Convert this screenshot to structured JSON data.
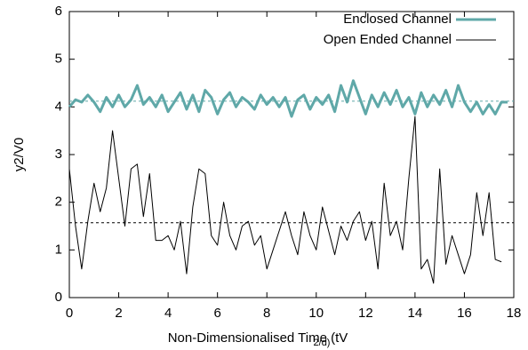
{
  "chart_data": {
    "type": "line",
    "xlabel": "Non-Dimensionalised Time (tV",
    "xlabel_subscript": "2/d)",
    "ylabel": "y2/V0",
    "xlim": [
      0,
      18
    ],
    "xticks": [
      0,
      2,
      4,
      6,
      8,
      10,
      12,
      14,
      16,
      18
    ],
    "ylim": [
      0,
      6
    ],
    "yticks": [
      0,
      1,
      2,
      3,
      4,
      5,
      6
    ],
    "legend": "top-right",
    "reference_lines": [
      {
        "value": 4.12,
        "color": "#5fa8a8"
      },
      {
        "value": 1.57,
        "color": "#000000"
      }
    ],
    "series": [
      {
        "name": "Enclosed Channel",
        "color": "#5fa8a8",
        "width": 3,
        "x": [
          0,
          0.25,
          0.5,
          0.75,
          1,
          1.25,
          1.5,
          1.75,
          2,
          2.25,
          2.5,
          2.75,
          3,
          3.25,
          3.5,
          3.75,
          4,
          4.25,
          4.5,
          4.75,
          5,
          5.25,
          5.5,
          5.75,
          6,
          6.25,
          6.5,
          6.75,
          7,
          7.25,
          7.5,
          7.75,
          8,
          8.25,
          8.5,
          8.75,
          9,
          9.25,
          9.5,
          9.75,
          10,
          10.25,
          10.5,
          10.75,
          11,
          11.25,
          11.5,
          11.75,
          12,
          12.25,
          12.5,
          12.75,
          13,
          13.25,
          13.5,
          13.75,
          14,
          14.25,
          14.5,
          14.75,
          15,
          15.25,
          15.5,
          15.75,
          16,
          16.25,
          16.5,
          16.75,
          17,
          17.25,
          17.5,
          17.75
        ],
        "values": [
          4.0,
          4.15,
          4.1,
          4.25,
          4.1,
          3.9,
          4.2,
          4.0,
          4.25,
          4.0,
          4.15,
          4.45,
          4.05,
          4.2,
          4.0,
          4.25,
          3.9,
          4.1,
          4.3,
          3.95,
          4.25,
          3.9,
          4.35,
          4.2,
          3.85,
          4.15,
          4.3,
          4.0,
          4.2,
          4.1,
          3.95,
          4.25,
          4.05,
          4.2,
          4.0,
          4.2,
          3.8,
          4.15,
          4.25,
          3.95,
          4.2,
          4.05,
          4.25,
          3.9,
          4.45,
          4.1,
          4.55,
          4.2,
          3.85,
          4.25,
          4.0,
          4.3,
          4.05,
          4.35,
          4.0,
          4.2,
          3.85,
          4.3,
          4.0,
          4.25,
          4.05,
          4.35,
          4.0,
          4.45,
          4.1,
          3.9,
          4.1,
          3.85,
          4.05,
          3.85,
          4.1,
          4.1
        ]
      },
      {
        "name": "Open Ended Channel",
        "color": "#000000",
        "width": 1,
        "x": [
          0,
          0.25,
          0.5,
          0.75,
          1,
          1.25,
          1.5,
          1.75,
          2,
          2.25,
          2.5,
          2.75,
          3,
          3.25,
          3.5,
          3.75,
          4,
          4.25,
          4.5,
          4.75,
          5,
          5.25,
          5.5,
          5.75,
          6,
          6.25,
          6.5,
          6.75,
          7,
          7.25,
          7.5,
          7.75,
          8,
          8.25,
          8.5,
          8.75,
          9,
          9.25,
          9.5,
          9.75,
          10,
          10.25,
          10.5,
          10.75,
          11,
          11.25,
          11.5,
          11.75,
          12,
          12.25,
          12.5,
          12.75,
          13,
          13.25,
          13.5,
          13.75,
          14,
          14.25,
          14.5,
          14.75,
          15,
          15.25,
          15.5,
          15.75,
          16,
          16.25,
          16.5,
          16.75,
          17,
          17.25,
          17.5
        ],
        "values": [
          2.7,
          1.5,
          0.6,
          1.6,
          2.4,
          1.8,
          2.3,
          3.5,
          2.5,
          1.5,
          2.7,
          2.8,
          1.7,
          2.6,
          1.2,
          1.2,
          1.3,
          1.0,
          1.6,
          0.5,
          1.9,
          2.7,
          2.6,
          1.3,
          1.1,
          2.0,
          1.3,
          1.0,
          1.5,
          1.6,
          1.1,
          1.3,
          0.6,
          1.0,
          1.4,
          1.8,
          1.3,
          0.9,
          1.8,
          1.3,
          1.0,
          1.9,
          1.4,
          0.9,
          1.5,
          1.2,
          1.6,
          1.8,
          1.2,
          1.6,
          0.6,
          2.4,
          1.3,
          1.6,
          1.0,
          2.5,
          3.8,
          0.6,
          0.8,
          0.3,
          2.7,
          0.7,
          1.3,
          0.9,
          0.5,
          0.9,
          2.2,
          1.3,
          2.2,
          0.8,
          0.75
        ]
      }
    ]
  }
}
